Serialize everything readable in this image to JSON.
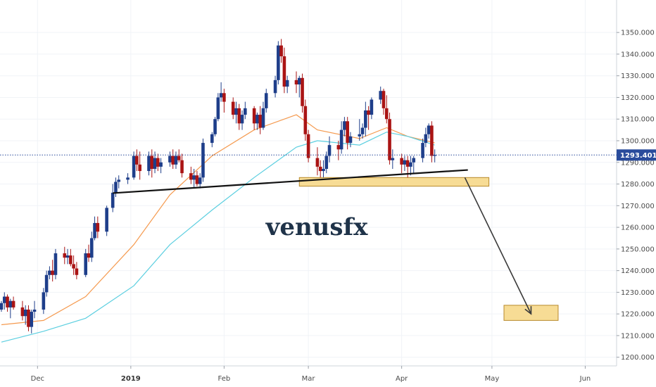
{
  "chart_data": {
    "type": "candlestick",
    "title": "",
    "watermark": "venusfx",
    "price_axis": {
      "ticks": [
        "1350.000",
        "1340.000",
        "1330.000",
        "1320.000",
        "1310.000",
        "1300.000",
        "1290.000",
        "1280.000",
        "1270.000",
        "1260.000",
        "1250.000",
        "1240.000",
        "1230.000",
        "1220.000",
        "1210.000",
        "1200.000"
      ],
      "range": [
        1196,
        1365
      ],
      "current_price_label": "1293.401",
      "current_price": 1293.4
    },
    "time_axis": {
      "labels": [
        {
          "text": "Dec",
          "bold": false
        },
        {
          "text": "2019",
          "bold": true
        },
        {
          "text": "Feb",
          "bold": false
        },
        {
          "text": "Mar",
          "bold": false
        },
        {
          "text": "Apr",
          "bold": false
        },
        {
          "text": "May",
          "bold": false
        },
        {
          "text": "Jun",
          "bold": false
        }
      ],
      "label_dates": [
        "2018-12-01",
        "2019-01-01",
        "2019-02-01",
        "2019-03-01",
        "2019-04-01",
        "2019-05-01",
        "2019-06-01"
      ],
      "range": [
        "2018-11-19",
        "2019-06-03"
      ]
    },
    "colors": {
      "up": "#1e3e8a",
      "down": "#aa1414",
      "ema_fast": "#f59a4f",
      "ema_slow": "#5ccfe0",
      "trendline": "#111111",
      "zone_fill": "#f7dc95",
      "zone_stroke": "#b88a2d",
      "price_line": "#2a4c9c",
      "arrow": "#3a3a3a",
      "grid": "#f0f3f7"
    },
    "moving_averages": [
      {
        "color": "orange",
        "points": [
          [
            "2018-11-19",
            1215
          ],
          [
            "2018-12-03",
            1217
          ],
          [
            "2018-12-17",
            1228
          ],
          [
            "2019-01-02",
            1252
          ],
          [
            "2019-01-14",
            1275
          ],
          [
            "2019-01-28",
            1293
          ],
          [
            "2019-02-11",
            1305
          ],
          [
            "2019-02-25",
            1312
          ],
          [
            "2019-03-04",
            1305
          ],
          [
            "2019-03-18",
            1301
          ],
          [
            "2019-03-27",
            1306
          ],
          [
            "2019-04-03",
            1302
          ],
          [
            "2019-04-12",
            1299
          ]
        ]
      },
      {
        "color": "cyan",
        "points": [
          [
            "2018-11-19",
            1207
          ],
          [
            "2018-12-03",
            1212
          ],
          [
            "2018-12-17",
            1218
          ],
          [
            "2019-01-02",
            1233
          ],
          [
            "2019-01-14",
            1252
          ],
          [
            "2019-01-28",
            1268
          ],
          [
            "2019-02-11",
            1283
          ],
          [
            "2019-02-25",
            1297
          ],
          [
            "2019-03-04",
            1300
          ],
          [
            "2019-03-18",
            1298
          ],
          [
            "2019-03-27",
            1304
          ],
          [
            "2019-04-03",
            1302
          ],
          [
            "2019-04-12",
            1298
          ]
        ]
      }
    ],
    "annotations": {
      "trendline": [
        [
          "2018-12-26",
          1275.8
        ],
        [
          "2019-04-23",
          1286.5
        ]
      ],
      "zones": [
        {
          "from": "2019-02-26",
          "to": "2019-04-30",
          "high": 1283,
          "low": 1279
        },
        {
          "from": "2019-05-05",
          "to": "2019-05-23",
          "high": 1224,
          "low": 1217
        }
      ],
      "arrow": [
        [
          "2019-04-22",
          1283
        ],
        [
          "2019-05-14",
          1220
        ]
      ]
    },
    "candles": [
      [
        "2018-11-19",
        1222,
        1226,
        1221,
        1225
      ],
      [
        "2018-11-20",
        1225,
        1230,
        1222,
        1228
      ],
      [
        "2018-11-21",
        1228,
        1229,
        1221,
        1223
      ],
      [
        "2018-11-22",
        1223,
        1227,
        1218,
        1226
      ],
      [
        "2018-11-23",
        1226,
        1228,
        1222,
        1223
      ],
      [
        "2018-11-26",
        1223,
        1226,
        1217,
        1219
      ],
      [
        "2018-11-27",
        1219,
        1224,
        1215,
        1222
      ],
      [
        "2018-11-28",
        1222,
        1224,
        1212,
        1214
      ],
      [
        "2018-11-29",
        1214,
        1222,
        1211,
        1221
      ],
      [
        "2018-11-30",
        1221,
        1226,
        1218,
        1222
      ],
      [
        "2018-12-03",
        1222,
        1232,
        1220,
        1230
      ],
      [
        "2018-12-04",
        1230,
        1240,
        1228,
        1238
      ],
      [
        "2018-12-05",
        1238,
        1242,
        1236,
        1240
      ],
      [
        "2018-12-06",
        1240,
        1245,
        1235,
        1238
      ],
      [
        "2018-12-07",
        1238,
        1250,
        1236,
        1248
      ],
      [
        "2018-12-10",
        1248,
        1251,
        1243,
        1246
      ],
      [
        "2018-12-11",
        1246,
        1250,
        1243,
        1247
      ],
      [
        "2018-12-12",
        1247,
        1250,
        1242,
        1243
      ],
      [
        "2018-12-13",
        1243,
        1247,
        1238,
        1241
      ],
      [
        "2018-12-14",
        1241,
        1244,
        1236,
        1238
      ],
      [
        "2018-12-17",
        1238,
        1250,
        1237,
        1248
      ],
      [
        "2018-12-18",
        1248,
        1252,
        1244,
        1246
      ],
      [
        "2018-12-19",
        1246,
        1258,
        1244,
        1255
      ],
      [
        "2018-12-20",
        1255,
        1265,
        1254,
        1262
      ],
      [
        "2018-12-21",
        1262,
        1265,
        1255,
        1258
      ],
      [
        "2018-12-24",
        1258,
        1270,
        1256,
        1269
      ],
      [
        "2018-12-26",
        1269,
        1280,
        1267,
        1276
      ],
      [
        "2018-12-27",
        1276,
        1283,
        1274,
        1281
      ],
      [
        "2018-12-28",
        1281,
        1284,
        1278,
        1282
      ],
      [
        "2018-12-31",
        1282,
        1285,
        1280,
        1283
      ],
      [
        "2019-01-02",
        1283,
        1295,
        1282,
        1293
      ],
      [
        "2019-01-03",
        1293,
        1296,
        1286,
        1289
      ],
      [
        "2019-01-04",
        1289,
        1295,
        1282,
        1286
      ],
      [
        "2019-01-07",
        1286,
        1295,
        1284,
        1293
      ],
      [
        "2019-01-08",
        1293,
        1296,
        1283,
        1287
      ],
      [
        "2019-01-09",
        1287,
        1295,
        1285,
        1292
      ],
      [
        "2019-01-10",
        1292,
        1294,
        1286,
        1288
      ],
      [
        "2019-01-11",
        1288,
        1292,
        1285,
        1290
      ],
      [
        "2019-01-14",
        1290,
        1295,
        1288,
        1293
      ],
      [
        "2019-01-15",
        1293,
        1296,
        1287,
        1289
      ],
      [
        "2019-01-16",
        1289,
        1295,
        1287,
        1293
      ],
      [
        "2019-01-17",
        1293,
        1296,
        1290,
        1291
      ],
      [
        "2019-01-18",
        1291,
        1294,
        1283,
        1285
      ],
      [
        "2019-01-21",
        1285,
        1288,
        1280,
        1282
      ],
      [
        "2019-01-22",
        1282,
        1287,
        1278,
        1284
      ],
      [
        "2019-01-23",
        1284,
        1286,
        1279,
        1280
      ],
      [
        "2019-01-24",
        1280,
        1285,
        1278,
        1283
      ],
      [
        "2019-01-25",
        1283,
        1301,
        1281,
        1299
      ],
      [
        "2019-01-28",
        1299,
        1304,
        1297,
        1303
      ],
      [
        "2019-01-29",
        1303,
        1311,
        1302,
        1310
      ],
      [
        "2019-01-30",
        1310,
        1322,
        1309,
        1320
      ],
      [
        "2019-01-31",
        1320,
        1327,
        1318,
        1322
      ],
      [
        "2019-02-01",
        1322,
        1324,
        1313,
        1318
      ],
      [
        "2019-02-04",
        1318,
        1320,
        1310,
        1312
      ],
      [
        "2019-02-05",
        1312,
        1318,
        1308,
        1315
      ],
      [
        "2019-02-06",
        1315,
        1317,
        1305,
        1308
      ],
      [
        "2019-02-07",
        1308,
        1314,
        1305,
        1312
      ],
      [
        "2019-02-08",
        1312,
        1318,
        1310,
        1315
      ],
      [
        "2019-02-11",
        1315,
        1316,
        1305,
        1308
      ],
      [
        "2019-02-12",
        1308,
        1313,
        1305,
        1312
      ],
      [
        "2019-02-13",
        1312,
        1316,
        1303,
        1306
      ],
      [
        "2019-02-14",
        1306,
        1318,
        1305,
        1315
      ],
      [
        "2019-02-15",
        1315,
        1324,
        1313,
        1322
      ],
      [
        "2019-02-18",
        1322,
        1330,
        1320,
        1328
      ],
      [
        "2019-02-19",
        1328,
        1346,
        1326,
        1344
      ],
      [
        "2019-02-20",
        1344,
        1347,
        1336,
        1339
      ],
      [
        "2019-02-21",
        1339,
        1343,
        1322,
        1325
      ],
      [
        "2019-02-22",
        1325,
        1330,
        1322,
        1328
      ],
      [
        "2019-02-25",
        1328,
        1332,
        1322,
        1326
      ],
      [
        "2019-02-26",
        1326,
        1330,
        1320,
        1329
      ],
      [
        "2019-02-27",
        1329,
        1331,
        1313,
        1316
      ],
      [
        "2019-02-28",
        1316,
        1319,
        1300,
        1303
      ],
      [
        "2019-03-01",
        1303,
        1305,
        1290,
        1292
      ],
      [
        "2019-03-04",
        1292,
        1297,
        1284,
        1288
      ],
      [
        "2019-03-05",
        1288,
        1291,
        1283,
        1286
      ],
      [
        "2019-03-06",
        1286,
        1291,
        1283,
        1287
      ],
      [
        "2019-03-07",
        1287,
        1295,
        1285,
        1293
      ],
      [
        "2019-03-08",
        1293,
        1302,
        1290,
        1298
      ],
      [
        "2019-03-11",
        1298,
        1300,
        1291,
        1296
      ],
      [
        "2019-03-12",
        1296,
        1309,
        1294,
        1305
      ],
      [
        "2019-03-13",
        1305,
        1311,
        1302,
        1309
      ],
      [
        "2019-03-14",
        1309,
        1311,
        1296,
        1299
      ],
      [
        "2019-03-15",
        1299,
        1304,
        1297,
        1302
      ],
      [
        "2019-03-18",
        1302,
        1310,
        1300,
        1303
      ],
      [
        "2019-03-19",
        1303,
        1308,
        1301,
        1306
      ],
      [
        "2019-03-20",
        1306,
        1318,
        1302,
        1314
      ],
      [
        "2019-03-21",
        1314,
        1316,
        1305,
        1312
      ],
      [
        "2019-03-22",
        1312,
        1320,
        1310,
        1319
      ],
      [
        "2019-03-25",
        1319,
        1325,
        1317,
        1323
      ],
      [
        "2019-03-26",
        1323,
        1324,
        1312,
        1315
      ],
      [
        "2019-03-27",
        1315,
        1321,
        1308,
        1310
      ],
      [
        "2019-03-28",
        1310,
        1313,
        1289,
        1291
      ],
      [
        "2019-03-29",
        1291,
        1296,
        1287,
        1292
      ],
      [
        "2019-04-01",
        1292,
        1294,
        1285,
        1289
      ],
      [
        "2019-04-02",
        1289,
        1293,
        1286,
        1291
      ],
      [
        "2019-04-03",
        1291,
        1293,
        1283,
        1288
      ],
      [
        "2019-04-04",
        1288,
        1293,
        1284,
        1290
      ],
      [
        "2019-04-05",
        1290,
        1293,
        1285,
        1292
      ],
      [
        "2019-04-08",
        1292,
        1301,
        1290,
        1299
      ],
      [
        "2019-04-09",
        1299,
        1306,
        1297,
        1303
      ],
      [
        "2019-04-10",
        1303,
        1308,
        1301,
        1307
      ],
      [
        "2019-04-11",
        1307,
        1309,
        1290,
        1293
      ],
      [
        "2019-04-12",
        1293,
        1296,
        1290,
        1293.4
      ]
    ]
  }
}
